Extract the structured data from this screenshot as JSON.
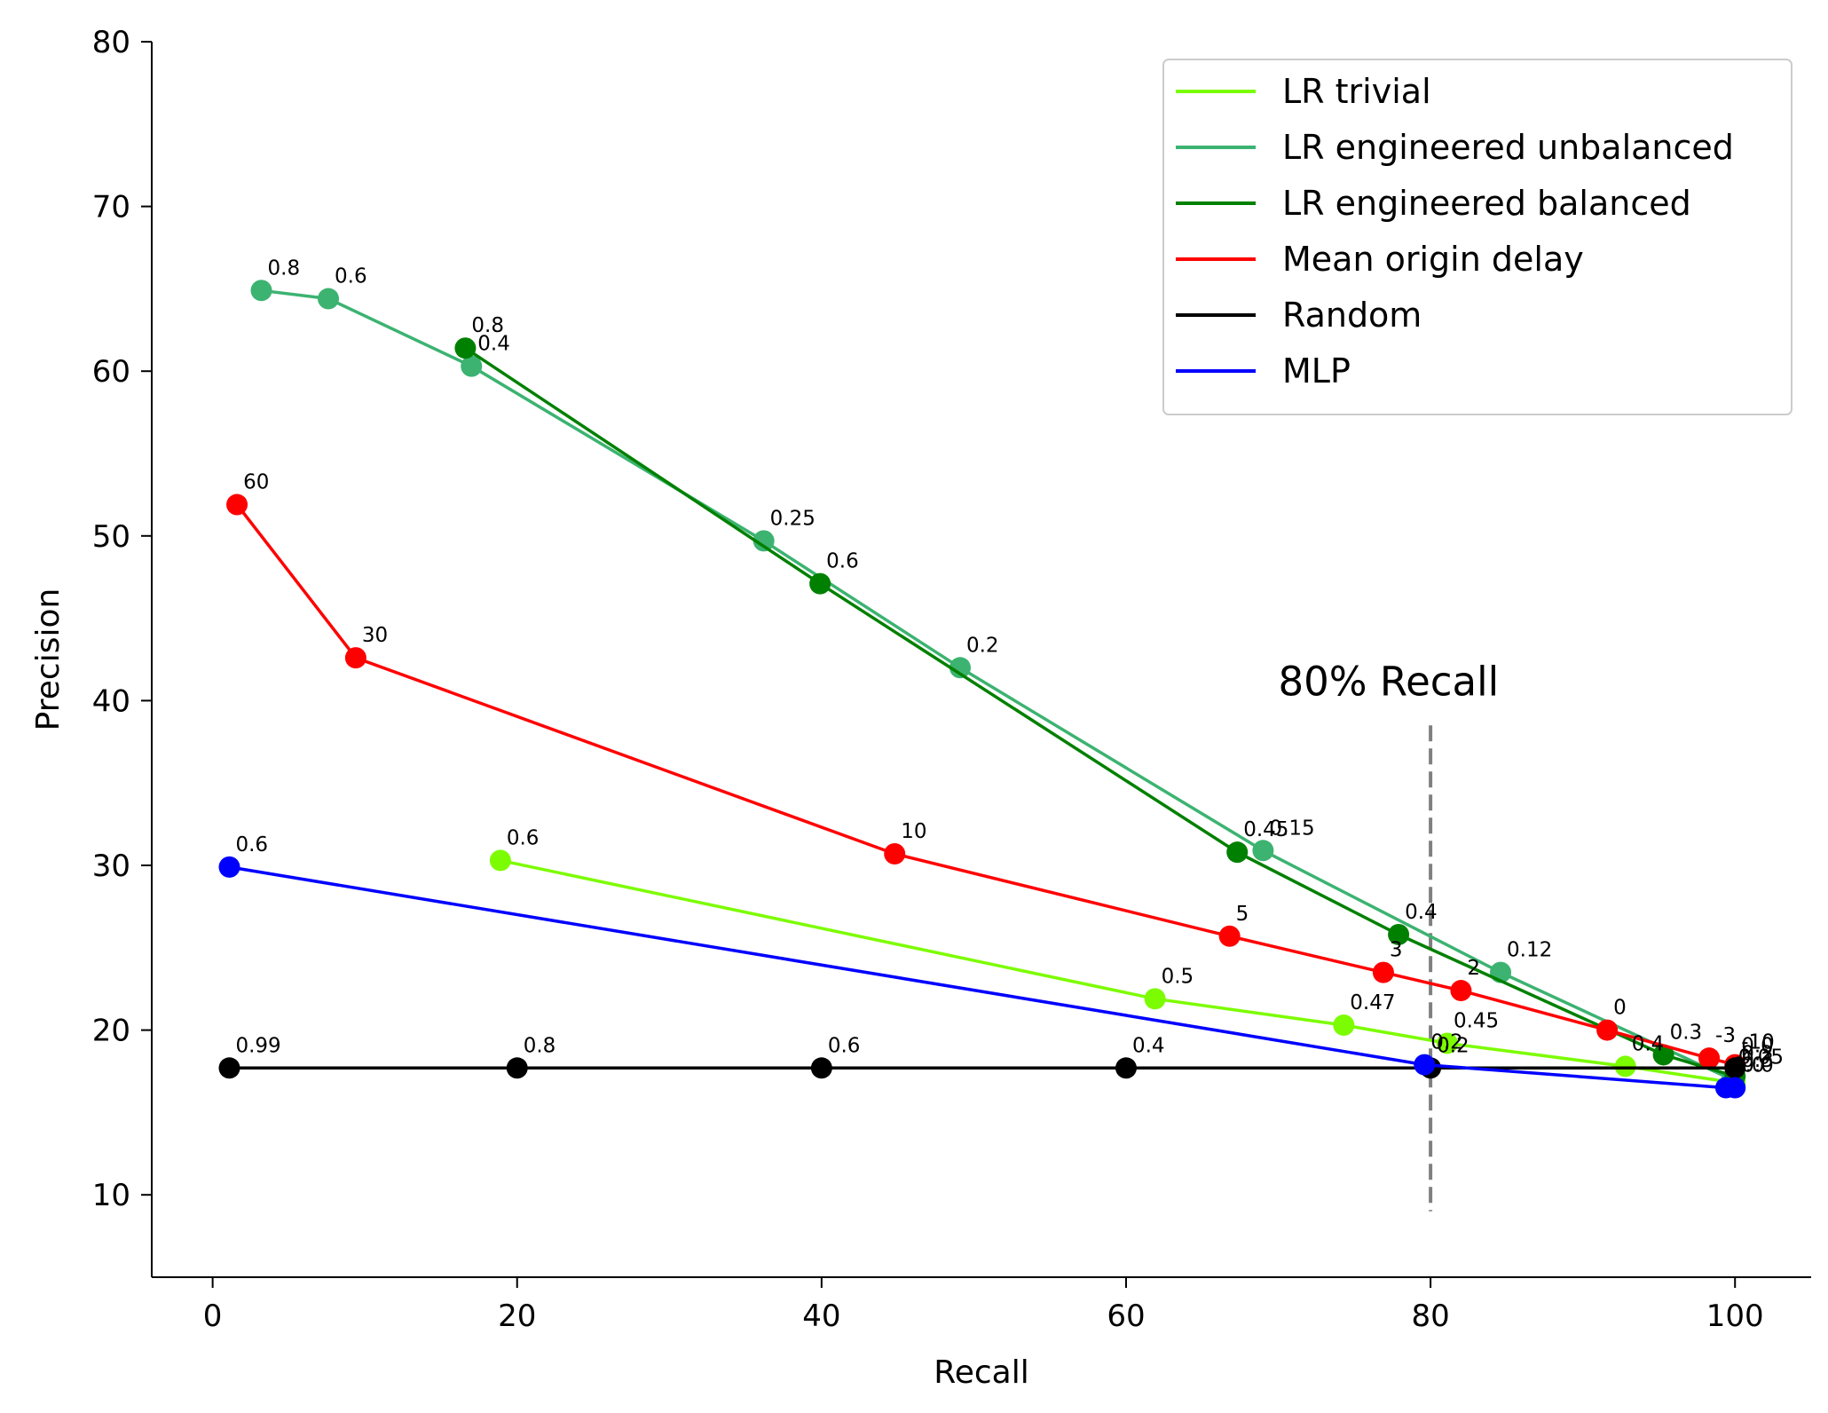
{
  "chart_data": {
    "type": "line",
    "title": "",
    "xlabel": "Recall",
    "ylabel": "Precision",
    "xlim": [
      -4,
      105
    ],
    "ylim": [
      5,
      80
    ],
    "xticks": [
      "0",
      "20",
      "40",
      "60",
      "80",
      "100"
    ],
    "yticks": [
      "10",
      "20",
      "30",
      "40",
      "50",
      "60",
      "70",
      "80"
    ],
    "grid": false,
    "legend_position": "top-right",
    "annotation": {
      "text": "80% Recall",
      "x": 70,
      "y": 40,
      "line_x": 80,
      "line_from": 9,
      "line_to": 38.5,
      "line_color": "#808080"
    },
    "series": [
      {
        "name": "LR trivial",
        "color": "#7cfc00",
        "points": [
          {
            "x": 18.9,
            "y": 30.3,
            "label": "0.6"
          },
          {
            "x": 61.9,
            "y": 21.9,
            "label": "0.5"
          },
          {
            "x": 74.3,
            "y": 20.3,
            "label": "0.47"
          },
          {
            "x": 81.1,
            "y": 19.2,
            "label": "0.45"
          },
          {
            "x": 92.8,
            "y": 17.8,
            "label": "0.4"
          },
          {
            "x": 100.0,
            "y": 16.8,
            "label": "0.3"
          }
        ]
      },
      {
        "name": "LR engineered unbalanced",
        "color": "#3cb371",
        "points": [
          {
            "x": 3.2,
            "y": 64.9,
            "label": "0.8"
          },
          {
            "x": 7.6,
            "y": 64.4,
            "label": "0.6"
          },
          {
            "x": 17.0,
            "y": 60.3,
            "label": "0.4"
          },
          {
            "x": 36.2,
            "y": 49.7,
            "label": "0.25"
          },
          {
            "x": 49.1,
            "y": 42.0,
            "label": "0.2"
          },
          {
            "x": 69.0,
            "y": 30.9,
            "label": "0.15"
          },
          {
            "x": 84.6,
            "y": 23.5,
            "label": "0.12"
          },
          {
            "x": 99.8,
            "y": 17.0,
            "label": "0.05"
          }
        ]
      },
      {
        "name": "LR engineered balanced",
        "color": "#008000",
        "points": [
          {
            "x": 16.6,
            "y": 61.4,
            "label": "0.8"
          },
          {
            "x": 39.9,
            "y": 47.1,
            "label": "0.6"
          },
          {
            "x": 67.3,
            "y": 30.8,
            "label": "0.45"
          },
          {
            "x": 77.9,
            "y": 25.8,
            "label": "0.4"
          },
          {
            "x": 95.3,
            "y": 18.5,
            "label": "0.3"
          },
          {
            "x": 100.0,
            "y": 17.2,
            "label": "0.2"
          }
        ]
      },
      {
        "name": "Mean origin delay",
        "color": "#ff0000",
        "points": [
          {
            "x": 1.6,
            "y": 51.9,
            "label": "60"
          },
          {
            "x": 9.4,
            "y": 42.6,
            "label": "30"
          },
          {
            "x": 44.8,
            "y": 30.7,
            "label": "10"
          },
          {
            "x": 66.8,
            "y": 25.7,
            "label": "5"
          },
          {
            "x": 76.9,
            "y": 23.5,
            "label": "3"
          },
          {
            "x": 82.0,
            "y": 22.4,
            "label": "2"
          },
          {
            "x": 91.6,
            "y": 20.0,
            "label": "0"
          },
          {
            "x": 98.3,
            "y": 18.3,
            "label": "-3"
          },
          {
            "x": 100.0,
            "y": 17.9,
            "label": "-10"
          }
        ]
      },
      {
        "name": "Random",
        "color": "#000000",
        "points": [
          {
            "x": 1.1,
            "y": 17.7,
            "label": "0.99"
          },
          {
            "x": 20.0,
            "y": 17.7,
            "label": "0.8"
          },
          {
            "x": 40.0,
            "y": 17.7,
            "label": "0.6"
          },
          {
            "x": 60.0,
            "y": 17.7,
            "label": "0.4"
          },
          {
            "x": 80.0,
            "y": 17.7,
            "label": "0.2"
          },
          {
            "x": 100.0,
            "y": 17.7,
            "label": "0.0"
          }
        ]
      },
      {
        "name": "MLP",
        "color": "#0000ff",
        "points": [
          {
            "x": 1.1,
            "y": 29.9,
            "label": "0.6"
          },
          {
            "x": 79.6,
            "y": 17.9,
            "label": "0.2"
          },
          {
            "x": 99.4,
            "y": 16.5,
            "label": "0.0"
          },
          {
            "x": 100.0,
            "y": 16.5,
            "label": "0.0"
          }
        ]
      }
    ]
  }
}
